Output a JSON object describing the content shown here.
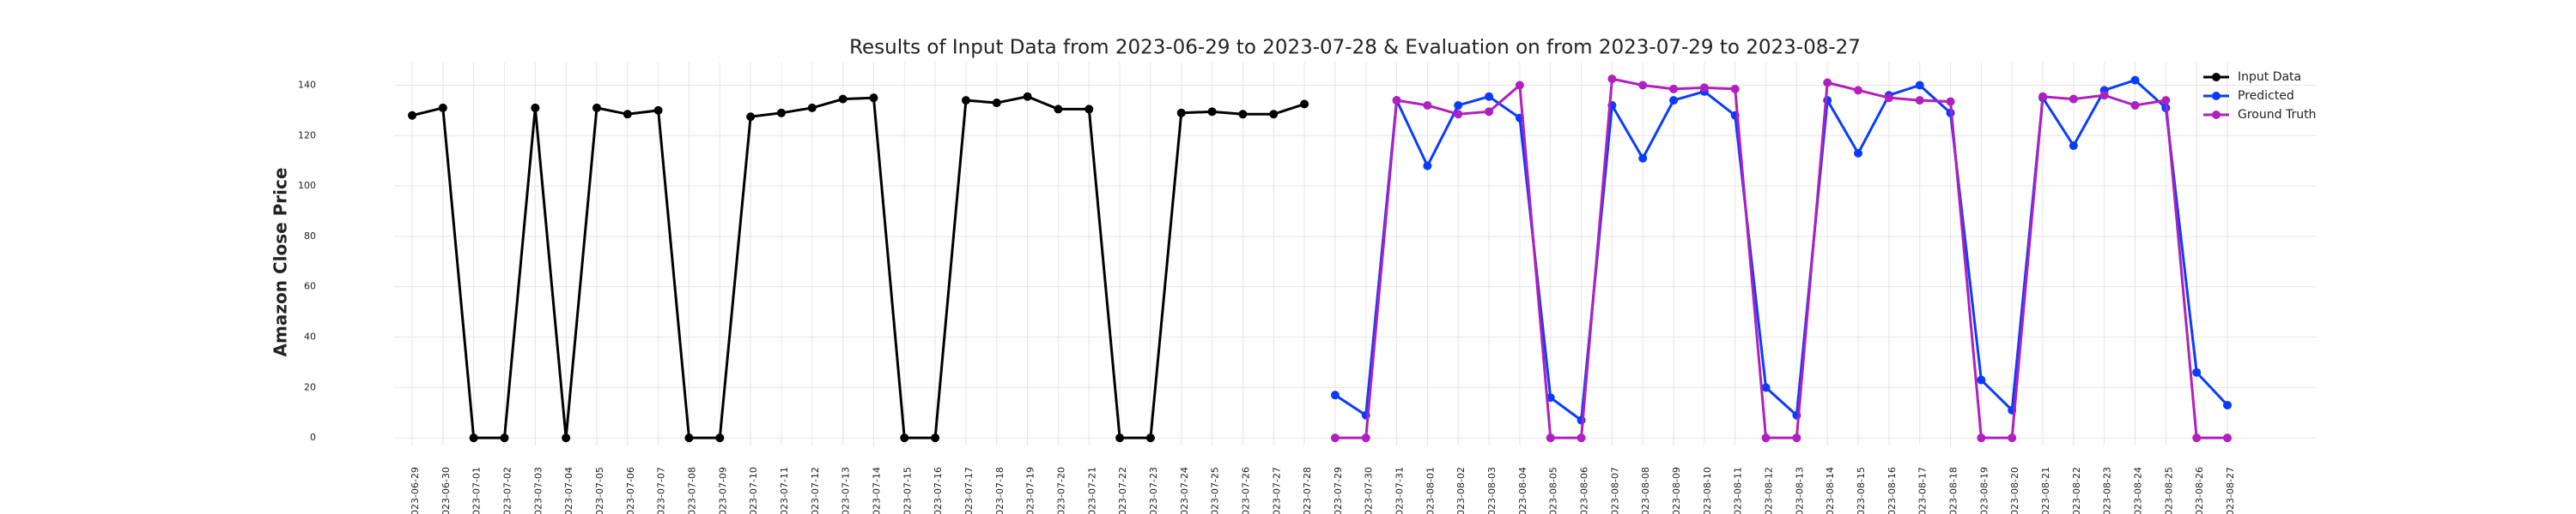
{
  "chart_data": {
    "type": "line",
    "title": "Results of Input Data from 2023-06-29 to 2023-07-28 & Evaluation on from 2023-07-29 to 2023-08-27",
    "y_label": "Amazon Close Price",
    "categories": [
      "2023-06-29",
      "2023-06-30",
      "2023-07-01",
      "2023-07-02",
      "2023-07-03",
      "2023-07-04",
      "2023-07-05",
      "2023-07-06",
      "2023-07-07",
      "2023-07-08",
      "2023-07-09",
      "2023-07-10",
      "2023-07-11",
      "2023-07-12",
      "2023-07-13",
      "2023-07-14",
      "2023-07-15",
      "2023-07-16",
      "2023-07-17",
      "2023-07-18",
      "2023-07-19",
      "2023-07-20",
      "2023-07-21",
      "2023-07-22",
      "2023-07-23",
      "2023-07-24",
      "2023-07-25",
      "2023-07-26",
      "2023-07-27",
      "2023-07-28",
      "2023-07-29",
      "2023-07-30",
      "2023-07-31",
      "2023-08-01",
      "2023-08-02",
      "2023-08-03",
      "2023-08-04",
      "2023-08-05",
      "2023-08-06",
      "2023-08-07",
      "2023-08-08",
      "2023-08-09",
      "2023-08-10",
      "2023-08-11",
      "2023-08-12",
      "2023-08-13",
      "2023-08-14",
      "2023-08-15",
      "2023-08-16",
      "2023-08-17",
      "2023-08-18",
      "2023-08-19",
      "2023-08-20",
      "2023-08-21",
      "2023-08-22",
      "2023-08-23",
      "2023-08-24",
      "2023-08-25",
      "2023-08-26",
      "2023-08-27"
    ],
    "series": [
      {
        "name": "Input Data",
        "color": "#000000",
        "values": [
          128,
          131,
          0,
          0,
          131,
          0,
          131,
          128.5,
          130,
          0,
          0,
          127.5,
          129,
          131,
          134.5,
          135,
          0,
          0,
          134,
          133,
          135.5,
          130.5,
          130.5,
          0,
          0,
          129,
          129.5,
          128.5,
          128.5,
          132.5,
          null,
          null,
          null,
          null,
          null,
          null,
          null,
          null,
          null,
          null,
          null,
          null,
          null,
          null,
          null,
          null,
          null,
          null,
          null,
          null,
          null,
          null,
          null,
          null,
          null,
          null,
          null,
          null,
          null,
          null
        ]
      },
      {
        "name": "Predicted",
        "color": "#0a3cff",
        "values": [
          null,
          null,
          null,
          null,
          null,
          null,
          null,
          null,
          null,
          null,
          null,
          null,
          null,
          null,
          null,
          null,
          null,
          null,
          null,
          null,
          null,
          null,
          null,
          null,
          null,
          null,
          null,
          null,
          null,
          null,
          17,
          9,
          134,
          108,
          132,
          135.5,
          127,
          16,
          7,
          132,
          111,
          134,
          137.5,
          128,
          20,
          9,
          134,
          113,
          136,
          140,
          129,
          23,
          11,
          135,
          116,
          138,
          142,
          131,
          26,
          13
        ]
      },
      {
        "name": "Ground Truth",
        "color": "#b01fbf",
        "values": [
          null,
          null,
          null,
          null,
          null,
          null,
          null,
          null,
          null,
          null,
          null,
          null,
          null,
          null,
          null,
          null,
          null,
          null,
          null,
          null,
          null,
          null,
          null,
          null,
          null,
          null,
          null,
          null,
          null,
          null,
          0,
          0,
          134,
          132,
          128.5,
          129.5,
          140,
          0,
          0,
          142.5,
          140,
          138.5,
          139,
          138.5,
          0,
          0,
          141,
          138,
          135,
          134,
          133.5,
          0,
          0,
          135.5,
          134.5,
          136,
          132,
          134,
          0,
          0
        ]
      }
    ],
    "ylim": [
      -3,
      149
    ],
    "yticks": [
      0,
      20,
      40,
      60,
      80,
      100,
      120,
      140
    ],
    "grid": true,
    "legend": "upper right"
  }
}
